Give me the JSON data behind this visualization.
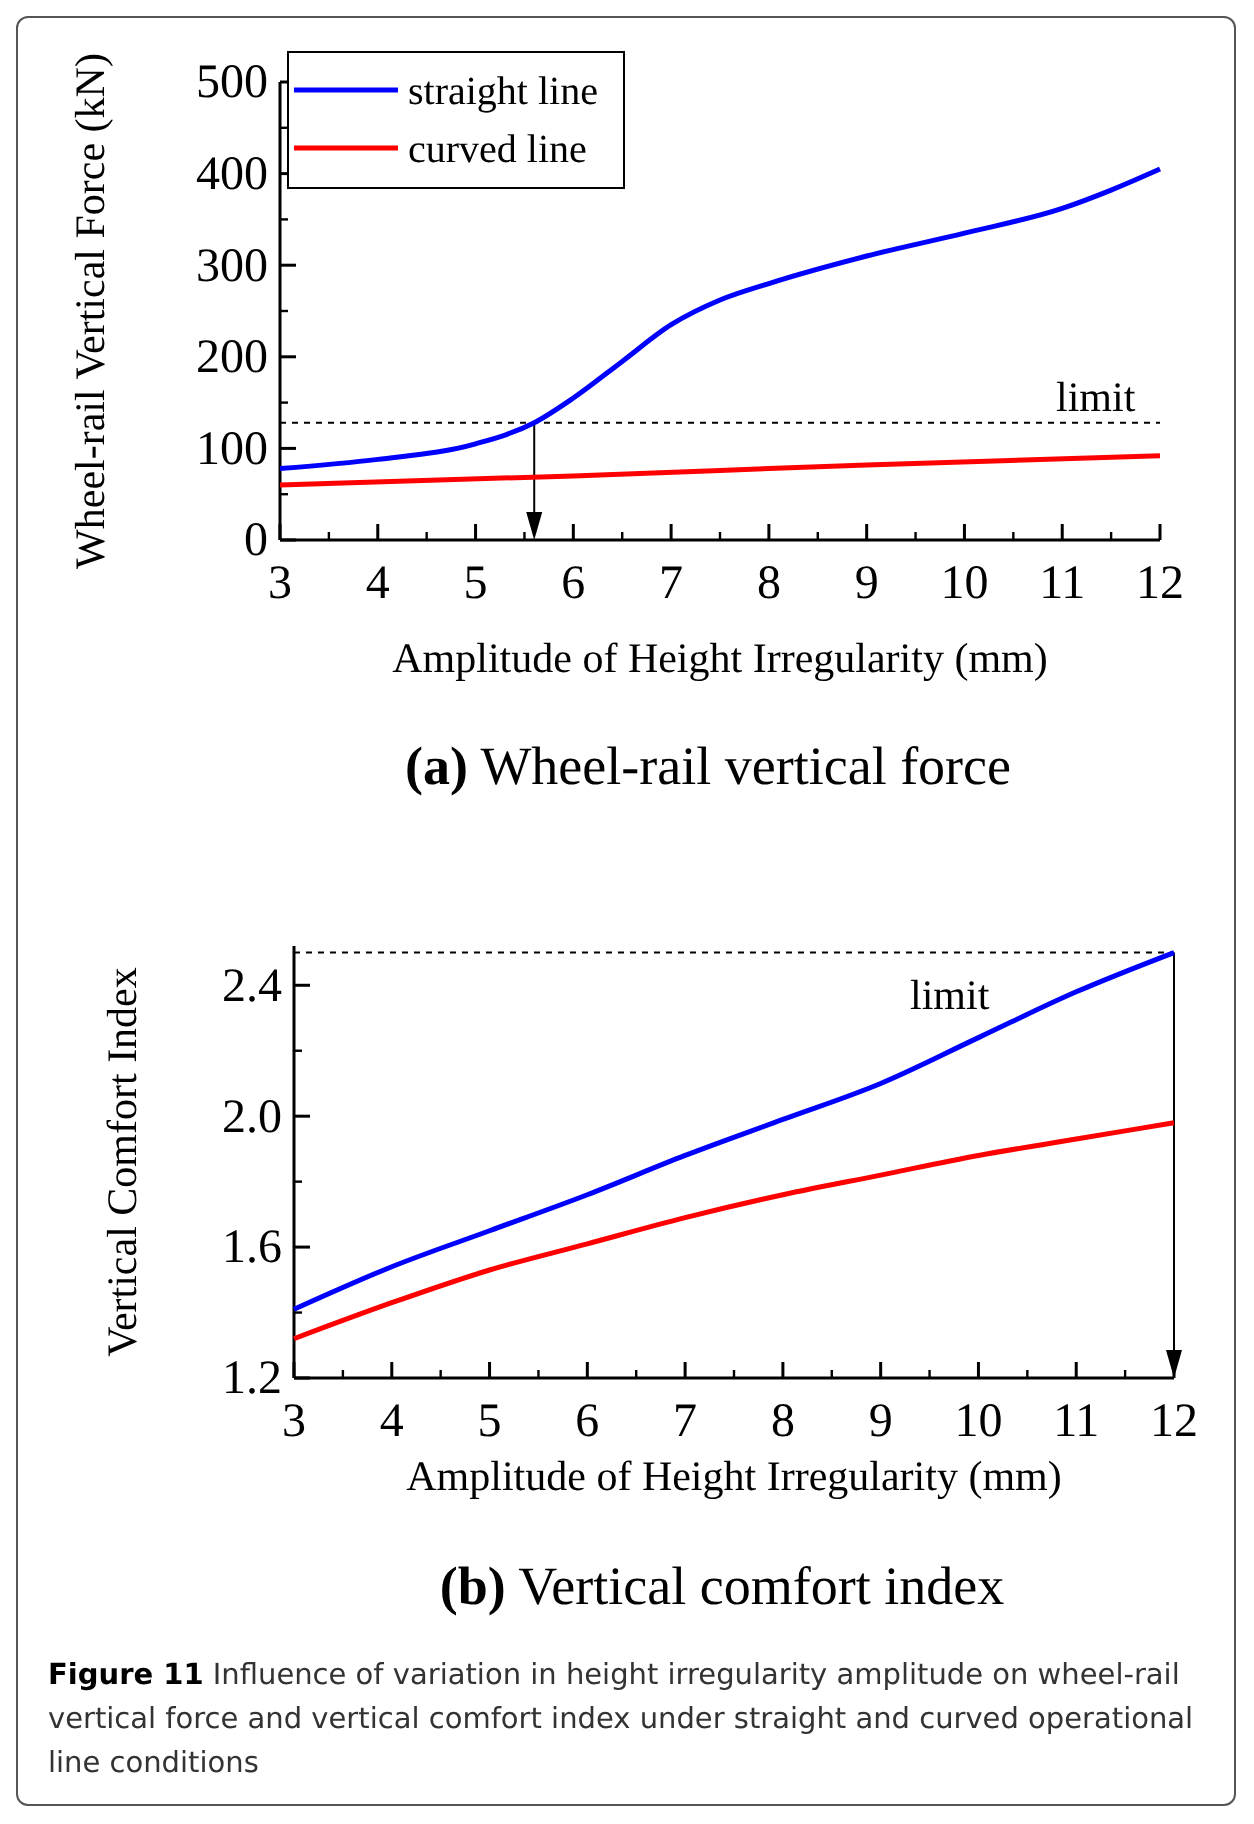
{
  "chart_data": [
    {
      "type": "line",
      "title": "(a) Wheel-rail vertical force",
      "xlabel": "Amplitude of Height Irregularity (mm)",
      "ylabel": "Wheel-rail Vertical Force (kN)",
      "xlim": [
        3,
        12
      ],
      "xticks": [
        3,
        4,
        5,
        6,
        7,
        8,
        9,
        10,
        11,
        12
      ],
      "ylim": [
        0,
        500
      ],
      "yticks": [
        0,
        100,
        200,
        300,
        400,
        500
      ],
      "grid": false,
      "legend": "top left",
      "line_style": "solid",
      "series": [
        {
          "name": "straight line",
          "color": "#0000ff",
          "x": [
            3,
            4,
            5,
            5.6,
            6,
            6.5,
            7,
            7.5,
            8,
            9,
            10,
            11,
            11.5,
            12
          ],
          "values": [
            78,
            88,
            105,
            128,
            155,
            195,
            235,
            262,
            280,
            310,
            335,
            362,
            382,
            405
          ]
        },
        {
          "name": "curved line",
          "color": "#ff0000",
          "x": [
            3,
            6,
            9,
            12
          ],
          "values": [
            60,
            70,
            82,
            92
          ]
        }
      ],
      "ref_lines": [
        {
          "axis": "y",
          "value": 128,
          "label": "limit",
          "line_style": "dashed"
        },
        {
          "axis": "x",
          "value": 5.6,
          "line_style": "solid"
        }
      ]
    },
    {
      "type": "line",
      "title": "(b) Vertical comfort index",
      "xlabel": "Amplitude of Height Irregularity (mm)",
      "ylabel": "Vertical Comfort Index",
      "xlim": [
        3,
        12
      ],
      "xticks": [
        3,
        4,
        5,
        6,
        7,
        8,
        9,
        10,
        11,
        12
      ],
      "ylim": [
        1.2,
        2.52
      ],
      "yticks": [
        {
          "value": 1.2,
          "label": "1.2"
        },
        {
          "value": 1.6,
          "label": "1.6"
        },
        {
          "value": 2.0,
          "label": "2.0"
        },
        {
          "value": 2.4,
          "label": "2.4"
        }
      ],
      "grid": false,
      "legend": false,
      "line_style": "solid",
      "series": [
        {
          "color": "#0000ff",
          "x": [
            3,
            4,
            5,
            6,
            7,
            8,
            9,
            10,
            11,
            12
          ],
          "values": [
            1.41,
            1.54,
            1.65,
            1.76,
            1.88,
            1.99,
            2.1,
            2.24,
            2.38,
            2.5
          ]
        },
        {
          "color": "#ff0000",
          "x": [
            3,
            4,
            5,
            6,
            7,
            8,
            9,
            10,
            11,
            12
          ],
          "values": [
            1.32,
            1.43,
            1.53,
            1.61,
            1.69,
            1.76,
            1.82,
            1.88,
            1.93,
            1.98
          ]
        }
      ],
      "ref_lines": [
        {
          "axis": "y",
          "value": 2.5,
          "label": "limit",
          "line_style": "dashed"
        },
        {
          "axis": "x",
          "value": 12,
          "line_style": "solid"
        }
      ],
      "annotations": [
        "Figure 11 Influence of variation in height irregularity amplitude on wheel-rail vertical force and vertical comfort index under straight and curved operational line conditions"
      ]
    }
  ]
}
